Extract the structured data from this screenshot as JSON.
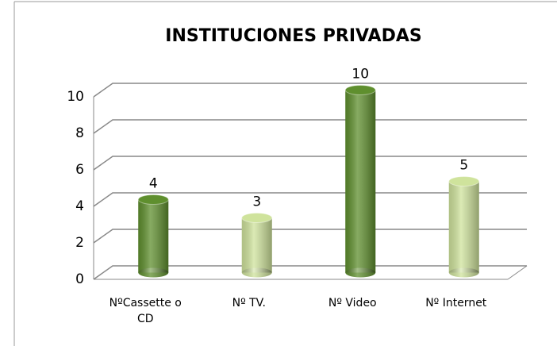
{
  "chart_data": {
    "type": "bar",
    "title": "INSTITUCIONES PRIVADAS",
    "categories": [
      "NºCassette o CD",
      "Nº TV.",
      "Nº Video",
      "Nº Internet"
    ],
    "values": [
      4,
      3,
      10,
      5
    ],
    "colors": [
      "#5f8f2e",
      "#cfe39c",
      "#5f8f2e",
      "#cfe39c"
    ],
    "ylim": [
      0,
      10
    ],
    "yticks": [
      0,
      2,
      4,
      6,
      8,
      10
    ],
    "grid": true
  }
}
